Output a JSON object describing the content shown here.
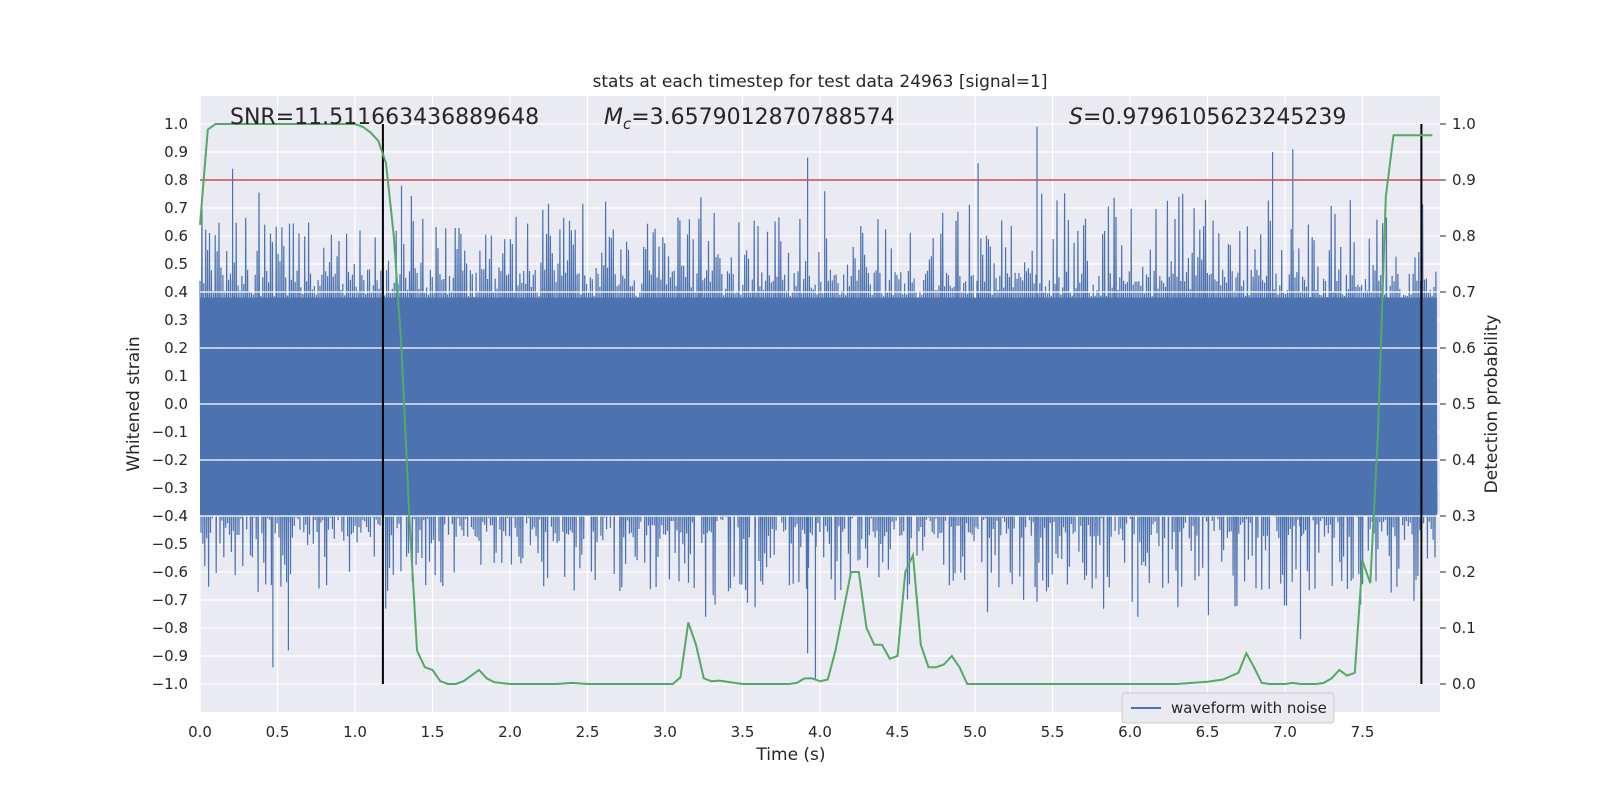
{
  "chart_data": {
    "type": "line",
    "title": "stats at each timestep for test data 24963 [signal=1]",
    "xlabel": "Time (s)",
    "ylabel": "Whitened strain",
    "y2label": "Detection probability",
    "xlim": [
      0.0,
      8.0
    ],
    "ylim": [
      -1.1,
      1.1
    ],
    "y2lim": [
      -0.05,
      1.05
    ],
    "xticks": [
      "0.0",
      "0.5",
      "1.0",
      "1.5",
      "2.0",
      "2.5",
      "3.0",
      "3.5",
      "4.0",
      "4.5",
      "5.0",
      "5.5",
      "6.0",
      "6.5",
      "7.0",
      "7.5"
    ],
    "yticks": [
      "1.0",
      "0.9",
      "0.8",
      "0.7",
      "0.6",
      "0.5",
      "0.4",
      "0.3",
      "0.2",
      "0.1",
      "0.0",
      "−0.1",
      "−0.2",
      "−0.3",
      "−0.4",
      "−0.5",
      "−0.6",
      "−0.7",
      "−0.8",
      "−0.9",
      "−1.0"
    ],
    "y2ticks": [
      "1.0",
      "0.9",
      "0.8",
      "0.7",
      "0.6",
      "0.5",
      "0.4",
      "0.3",
      "0.2",
      "0.1",
      "0.0"
    ],
    "annotations": {
      "snr": "SNR=11.511663436889648",
      "mc": "=3.6579012870788574",
      "mc_symbol": "M",
      "mc_sub": "c",
      "s": "=0.9796105623245239",
      "s_symbol": "S"
    },
    "legend": {
      "label": "waveform with noise",
      "position": "lower-right"
    },
    "colors": {
      "waveform": "#4c72b0",
      "probability": "#55a868",
      "threshold": "#c44e52",
      "markers": "#000000",
      "background": "#eaeaf2",
      "grid": "#ffffff"
    },
    "threshold_probability": 0.9,
    "detection_markers_x": [
      1.18,
      7.88
    ],
    "series": [
      {
        "name": "waveform with noise",
        "envelope_max": 1.0,
        "notable_peaks": [
          {
            "x": 0.21,
            "y": 0.84
          },
          {
            "x": 1.3,
            "y": 0.78
          },
          {
            "x": 3.92,
            "y": 0.88
          },
          {
            "x": 4.03,
            "y": 0.76
          },
          {
            "x": 5.02,
            "y": 0.86
          },
          {
            "x": 5.4,
            "y": 0.99
          },
          {
            "x": 6.92,
            "y": 0.9
          },
          {
            "x": 7.05,
            "y": 0.91
          },
          {
            "x": 0.47,
            "y": -0.94
          },
          {
            "x": 0.57,
            "y": -0.88
          },
          {
            "x": 3.92,
            "y": -0.89
          },
          {
            "x": 3.97,
            "y": -0.98
          },
          {
            "x": 7.1,
            "y": -0.84
          },
          {
            "x": 6.05,
            "y": -0.76
          }
        ]
      },
      {
        "name": "",
        "axis": "right",
        "x": [
          0.0,
          0.05,
          0.1,
          0.15,
          0.2,
          0.3,
          0.4,
          0.5,
          0.6,
          0.7,
          0.8,
          0.9,
          1.0,
          1.05,
          1.1,
          1.15,
          1.2,
          1.25,
          1.3,
          1.35,
          1.4,
          1.45,
          1.5,
          1.55,
          1.6,
          1.65,
          1.7,
          1.75,
          1.8,
          1.85,
          1.9,
          2.0,
          2.1,
          2.2,
          2.3,
          2.4,
          2.5,
          2.6,
          2.7,
          2.8,
          2.9,
          3.0,
          3.05,
          3.1,
          3.15,
          3.2,
          3.25,
          3.3,
          3.35,
          3.4,
          3.5,
          3.6,
          3.7,
          3.8,
          3.85,
          3.9,
          3.95,
          4.0,
          4.05,
          4.1,
          4.15,
          4.2,
          4.25,
          4.3,
          4.35,
          4.4,
          4.45,
          4.5,
          4.55,
          4.6,
          4.65,
          4.7,
          4.75,
          4.8,
          4.85,
          4.9,
          4.95,
          5.0,
          5.05,
          5.1,
          5.15,
          5.2,
          5.3,
          5.4,
          5.5,
          5.6,
          5.7,
          5.8,
          5.9,
          6.0,
          6.1,
          6.2,
          6.3,
          6.4,
          6.5,
          6.6,
          6.7,
          6.75,
          6.8,
          6.85,
          6.9,
          6.95,
          7.0,
          7.05,
          7.1,
          7.15,
          7.2,
          7.25,
          7.3,
          7.35,
          7.4,
          7.45,
          7.5,
          7.55,
          7.6,
          7.65,
          7.7,
          7.75,
          7.8,
          7.85,
          7.9,
          7.95
        ],
        "y": [
          0.82,
          0.99,
          1.0,
          1.0,
          1.0,
          1.0,
          1.0,
          1.0,
          1.0,
          1.0,
          1.0,
          1.0,
          1.0,
          0.995,
          0.985,
          0.97,
          0.93,
          0.8,
          0.6,
          0.3,
          0.06,
          0.03,
          0.025,
          0.005,
          0.0,
          0.0,
          0.005,
          0.015,
          0.025,
          0.01,
          0.003,
          0.0,
          0.0,
          0.0,
          0.0,
          0.002,
          0.0,
          0.0,
          0.0,
          0.0,
          0.0,
          0.0,
          0.0,
          0.012,
          0.11,
          0.07,
          0.01,
          0.005,
          0.006,
          0.004,
          0.0,
          0.0,
          0.0,
          0.0,
          0.002,
          0.01,
          0.01,
          0.005,
          0.008,
          0.06,
          0.13,
          0.2,
          0.2,
          0.1,
          0.07,
          0.07,
          0.045,
          0.05,
          0.2,
          0.23,
          0.07,
          0.03,
          0.03,
          0.035,
          0.05,
          0.03,
          0.0,
          0.0,
          0.0,
          0.0,
          0.0,
          0.0,
          0.0,
          0.0,
          0.0,
          0.0,
          0.0,
          0.0,
          0.0,
          0.0,
          0.0,
          0.0,
          0.0,
          0.002,
          0.004,
          0.008,
          0.02,
          0.055,
          0.03,
          0.002,
          0.0,
          0.0,
          0.0,
          0.002,
          0.0,
          0.0,
          0.0,
          0.002,
          0.01,
          0.025,
          0.015,
          0.02,
          0.22,
          0.18,
          0.45,
          0.87,
          0.98,
          0.98,
          0.98,
          0.98,
          0.98,
          0.98
        ]
      }
    ]
  }
}
